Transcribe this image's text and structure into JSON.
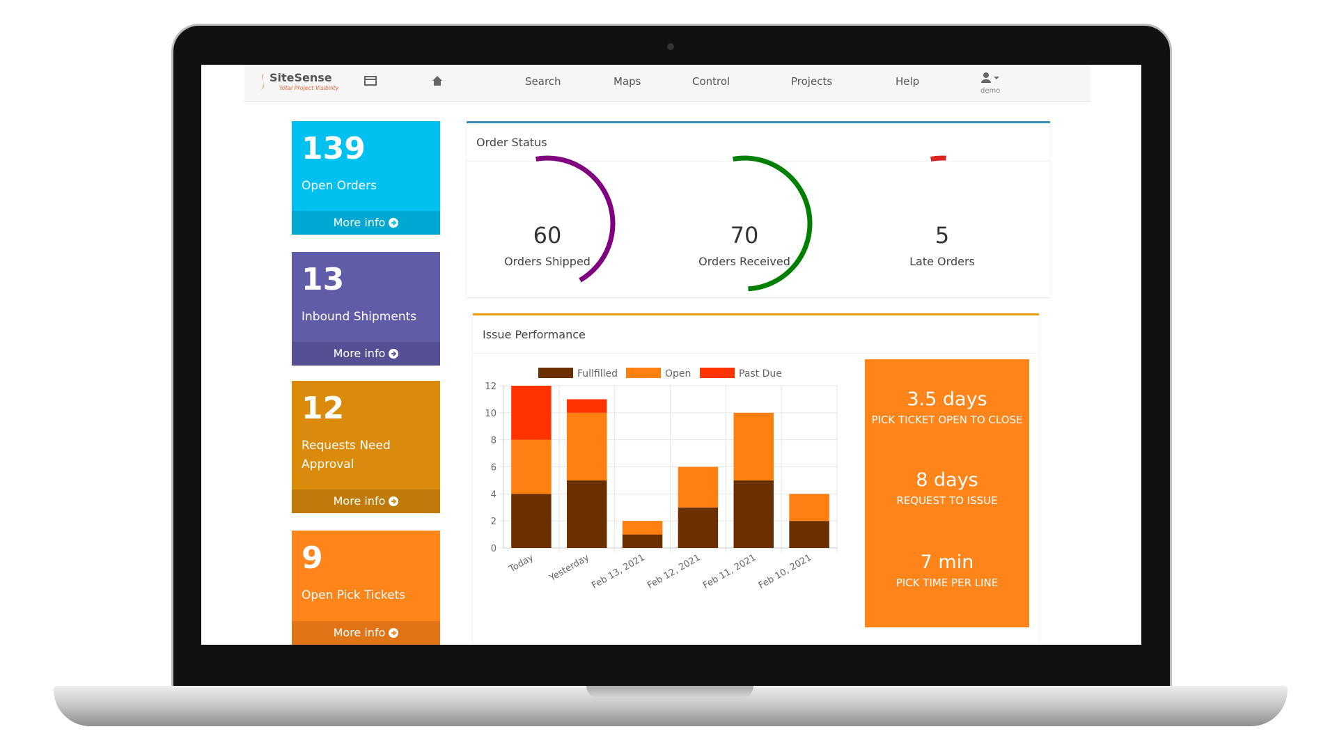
{
  "nav": {
    "brand": "SiteSense",
    "tagline": "Total Project Visibility",
    "items": [
      "Search",
      "Maps",
      "Control",
      "Projects",
      "Help"
    ],
    "user": "demo"
  },
  "cards": [
    {
      "value": 139,
      "label": "Open Orders",
      "link": "More info",
      "color": "#00c0ef"
    },
    {
      "value": 13,
      "label": "Inbound Shipments",
      "link": "More info",
      "color": "#605ca8"
    },
    {
      "value": 12,
      "label": "Requests Need Approval",
      "link": "More info",
      "color": "#db8b0b"
    },
    {
      "value": 9,
      "label": "Open Pick Tickets",
      "link": "More info",
      "color": "#ff851b"
    }
  ],
  "order_status": {
    "title": "Order Status",
    "gauges": [
      {
        "value": 60,
        "label": "Orders Shipped",
        "color": "#800080"
      },
      {
        "value": 70,
        "label": "Orders Received",
        "color": "#008000"
      },
      {
        "value": 5,
        "label": "Late Orders",
        "color": "#dd2222"
      }
    ]
  },
  "issue_performance": {
    "title": "Issue Performance",
    "kpis": [
      {
        "value": "3.5 days",
        "label": "PICK TICKET OPEN TO CLOSE"
      },
      {
        "value": "8 days",
        "label": "REQUEST TO ISSUE"
      },
      {
        "value": "7 min",
        "label": "PICK TIME PER LINE"
      }
    ]
  },
  "chart_data": {
    "type": "stacked-bar",
    "categories": [
      "Today",
      "Yesterday",
      "Feb 13, 2021",
      "Feb 12, 2021",
      "Feb 11, 2021",
      "Feb 10, 2021"
    ],
    "series": [
      {
        "name": "Fullfilled",
        "color": "#6b2f00",
        "values": [
          4,
          5,
          1,
          3,
          5,
          2
        ]
      },
      {
        "name": "Open",
        "color": "#ff8010",
        "values": [
          4,
          5,
          1,
          3,
          5,
          2
        ]
      },
      {
        "name": "Past Due",
        "color": "#ff3300",
        "values": [
          4,
          1,
          0,
          0,
          0,
          0
        ]
      }
    ],
    "ylim": [
      0,
      12
    ],
    "yticks": [
      0,
      2,
      4,
      6,
      8,
      10,
      12
    ],
    "grid": true
  }
}
